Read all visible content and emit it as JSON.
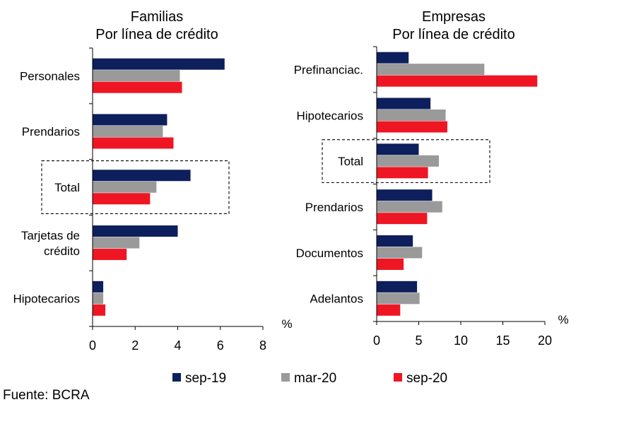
{
  "legend": [
    {
      "name": "sep-19",
      "color": "#0d1f5c"
    },
    {
      "name": "mar-20",
      "color": "#9a9a9a"
    },
    {
      "name": "sep-20",
      "color": "#ef1623"
    }
  ],
  "source": "Fuente: BCRA",
  "chart_data": [
    {
      "type": "bar",
      "orientation": "horizontal",
      "title": "Familias",
      "subtitle": "Por línea de crédito",
      "unit": "%",
      "categories": [
        "Personales",
        "Prendarios",
        "Total",
        "Tarjetas de\ncrédito",
        "Hipotecarios"
      ],
      "highlight": "Total",
      "xlim": [
        0,
        8
      ],
      "xticks": [
        "0",
        "2",
        "4",
        "6",
        "8"
      ],
      "series": [
        {
          "name": "sep-19",
          "values": [
            6.2,
            3.5,
            4.6,
            4.0,
            0.5
          ]
        },
        {
          "name": "mar-20",
          "values": [
            4.1,
            3.3,
            3.0,
            2.2,
            0.5
          ]
        },
        {
          "name": "sep-20",
          "values": [
            4.2,
            3.8,
            2.7,
            1.6,
            0.6
          ]
        }
      ]
    },
    {
      "type": "bar",
      "orientation": "horizontal",
      "title": "Empresas",
      "subtitle": "Por línea de crédito",
      "unit": "%",
      "categories": [
        "Prefinanciac.",
        "Hipotecarios",
        "Total",
        "Prendarios",
        "Documentos",
        "Adelantos"
      ],
      "highlight": "Total",
      "xlim": [
        0,
        20
      ],
      "xticks": [
        "0",
        "5",
        "10",
        "15",
        "20"
      ],
      "series": [
        {
          "name": "sep-19",
          "values": [
            3.8,
            6.4,
            5.0,
            6.6,
            4.3,
            4.8
          ]
        },
        {
          "name": "mar-20",
          "values": [
            12.8,
            8.2,
            7.4,
            7.8,
            5.4,
            5.1
          ]
        },
        {
          "name": "sep-20",
          "values": [
            19.1,
            8.4,
            6.1,
            6.0,
            3.2,
            2.8
          ]
        }
      ]
    }
  ]
}
